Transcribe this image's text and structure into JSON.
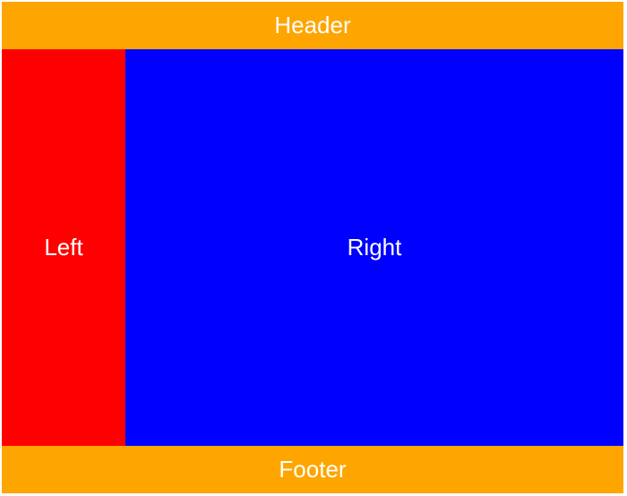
{
  "header": {
    "label": "Header",
    "color": "#FFA500"
  },
  "left": {
    "label": "Left",
    "color": "#FF0000"
  },
  "right": {
    "label": "Right",
    "color": "#0000FF"
  },
  "footer": {
    "label": "Footer",
    "color": "#FFA500"
  }
}
